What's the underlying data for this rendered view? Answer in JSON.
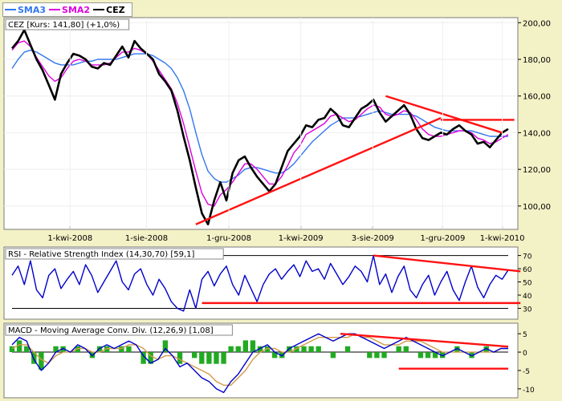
{
  "legend": [
    {
      "label": "SMA3",
      "color": "#3377ee"
    },
    {
      "label": "SMA2",
      "color": "#dd00dd"
    },
    {
      "label": "CEZ",
      "color": "#000000"
    }
  ],
  "chart_data": [
    {
      "type": "line",
      "title": "CEZ [Kurs: 141,80] (+1,0%)",
      "x_ticks": [
        "1-kwi-2008",
        "1-sie-2008",
        "1-gru-2008",
        "1-kwi-2009",
        "3-sie-2009",
        "1-gru-2009",
        "1-kwi-2010"
      ],
      "y_ticks": [
        100,
        120,
        140,
        160,
        180,
        200
      ],
      "y_tick_labels": [
        "100,00",
        "120,00",
        "140,00",
        "160,00",
        "180,00",
        "200,00"
      ],
      "ylim": [
        89,
        201
      ],
      "series": [
        {
          "name": "CEZ",
          "color": "#000000",
          "values": [
            186,
            190,
            196,
            188,
            180,
            174,
            166,
            158,
            172,
            178,
            183,
            182,
            180,
            176,
            175,
            178,
            177,
            182,
            187,
            181,
            190,
            186,
            183,
            180,
            172,
            168,
            163,
            152,
            138,
            125,
            110,
            96,
            90,
            103,
            113,
            103,
            118,
            125,
            127,
            121,
            116,
            112,
            108,
            112,
            121,
            130,
            134,
            138,
            144,
            143,
            147,
            148,
            153,
            150,
            144,
            143,
            148,
            153,
            155,
            158,
            151,
            146,
            149,
            152,
            155,
            150,
            142,
            137,
            136,
            138,
            140,
            139,
            142,
            144,
            141,
            139,
            134,
            135,
            132,
            136,
            140,
            142
          ]
        },
        {
          "name": "SMA2",
          "color": "#dd00dd",
          "values": [
            185,
            189,
            190,
            187,
            181,
            176,
            171,
            168,
            170,
            175,
            179,
            180,
            179,
            177,
            177,
            177,
            178,
            181,
            184,
            184,
            186,
            185,
            183,
            179,
            174,
            169,
            164,
            156,
            145,
            132,
            119,
            107,
            101,
            100,
            106,
            109,
            113,
            118,
            123,
            123,
            120,
            116,
            112,
            112,
            116,
            122,
            129,
            133,
            139,
            141,
            143,
            145,
            149,
            150,
            148,
            146,
            147,
            150,
            153,
            155,
            154,
            150,
            149,
            150,
            152,
            151,
            147,
            142,
            139,
            138,
            138,
            139,
            140,
            141,
            141,
            140,
            137,
            136,
            134,
            135,
            137,
            139
          ]
        },
        {
          "name": "SMA3",
          "color": "#3377ee",
          "values": [
            175,
            180,
            184,
            185,
            184,
            182,
            180,
            178,
            177,
            177,
            177,
            178,
            179,
            179,
            180,
            180,
            180,
            180,
            181,
            182,
            183,
            183,
            183,
            182,
            180,
            178,
            175,
            170,
            163,
            153,
            140,
            128,
            119,
            115,
            113,
            113,
            115,
            117,
            120,
            121,
            121,
            120,
            119,
            118,
            118,
            120,
            123,
            127,
            131,
            135,
            138,
            141,
            144,
            146,
            148,
            148,
            148,
            149,
            150,
            151,
            152,
            151,
            150,
            150,
            150,
            150,
            149,
            147,
            145,
            143,
            142,
            141,
            141,
            141,
            141,
            141,
            140,
            139,
            138,
            138,
            138,
            138
          ]
        }
      ],
      "trendlines": [
        {
          "x": [
            30,
            70
          ],
          "y": [
            90,
            148
          ]
        },
        {
          "x": [
            61,
            80
          ],
          "y": [
            160,
            140
          ]
        },
        {
          "x": [
            70,
            82
          ],
          "y": [
            147,
            147
          ]
        }
      ]
    },
    {
      "type": "line",
      "title": "RSI - Relative Strength Index (14,30,70) [59,1]",
      "y_ticks": [
        30,
        40,
        50,
        60,
        70
      ],
      "ylim": [
        23,
        74
      ],
      "reference_lines": [
        30,
        70
      ],
      "series": [
        {
          "name": "RSI",
          "color": "#0000cc",
          "values": [
            55,
            62,
            48,
            66,
            44,
            38,
            55,
            60,
            45,
            52,
            58,
            48,
            63,
            55,
            42,
            50,
            58,
            66,
            50,
            44,
            56,
            60,
            48,
            40,
            52,
            45,
            35,
            30,
            28,
            44,
            30,
            52,
            58,
            47,
            56,
            62,
            48,
            40,
            55,
            45,
            35,
            48,
            56,
            60,
            52,
            58,
            63,
            54,
            66,
            58,
            60,
            52,
            64,
            56,
            48,
            54,
            62,
            58,
            50,
            70,
            48,
            56,
            42,
            54,
            62,
            44,
            38,
            48,
            55,
            40,
            50,
            58,
            44,
            36,
            50,
            62,
            46,
            38,
            48,
            55,
            52,
            59
          ]
        }
      ],
      "trendlines": [
        {
          "x": [
            31,
            83
          ],
          "y": [
            34,
            34
          ]
        },
        {
          "x": [
            59,
            83
          ],
          "y": [
            70,
            58
          ]
        }
      ]
    },
    {
      "type": "line",
      "title": "MACD - Moving Average Conv. Div. (12,26,9) [1,08]",
      "y_ticks": [
        -10,
        -5,
        0,
        5
      ],
      "ylim": [
        -12,
        7
      ],
      "series": [
        {
          "name": "MACD",
          "color": "#0000cc",
          "values": [
            2,
            4,
            3,
            -2,
            -5,
            -3,
            0,
            1,
            0,
            2,
            1,
            -1,
            1,
            2,
            1,
            2,
            3,
            2,
            -1,
            -3,
            -2,
            1,
            -1,
            -4,
            -3,
            -5,
            -7,
            -8,
            -10,
            -11,
            -8,
            -6,
            -3,
            0,
            1,
            2,
            0,
            -1,
            1,
            2,
            3,
            4,
            5,
            4,
            3,
            4,
            5,
            5,
            4,
            3,
            2,
            1,
            2,
            3,
            4,
            3,
            2,
            1,
            0,
            -1,
            0,
            1,
            0,
            -1,
            0,
            1,
            0,
            1,
            1
          ]
        },
        {
          "name": "Signal",
          "color": "#d29a4a",
          "values": [
            1,
            2,
            2,
            0,
            -2,
            -3,
            -1,
            0,
            0,
            1,
            1,
            0,
            0,
            1,
            1,
            1,
            2,
            2,
            1,
            -1,
            -2,
            -1,
            -1,
            -2,
            -3,
            -4,
            -5,
            -6,
            -8,
            -9,
            -9,
            -7,
            -5,
            -2,
            0,
            1,
            1,
            0,
            0,
            1,
            2,
            3,
            4,
            4,
            4,
            4,
            4,
            5,
            4,
            4,
            3,
            2,
            2,
            2,
            3,
            3,
            3,
            2,
            1,
            0,
            0,
            0,
            0,
            0,
            0,
            0,
            0,
            1,
            1
          ]
        }
      ],
      "trendlines": [
        {
          "x": [
            45,
            68
          ],
          "y": [
            5,
            1.5
          ]
        },
        {
          "x": [
            53,
            68
          ],
          "y": [
            -4.5,
            -4.5
          ]
        }
      ]
    }
  ]
}
